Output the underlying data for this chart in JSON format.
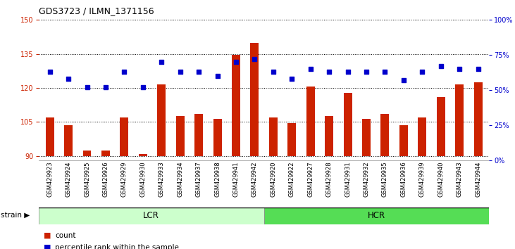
{
  "title": "GDS3723 / ILMN_1371156",
  "samples": [
    "GSM429923",
    "GSM429924",
    "GSM429925",
    "GSM429926",
    "GSM429929",
    "GSM429930",
    "GSM429933",
    "GSM429934",
    "GSM429937",
    "GSM429938",
    "GSM429941",
    "GSM429942",
    "GSM429920",
    "GSM429922",
    "GSM429927",
    "GSM429928",
    "GSM429931",
    "GSM429932",
    "GSM429935",
    "GSM429936",
    "GSM429939",
    "GSM429940",
    "GSM429943",
    "GSM429944"
  ],
  "counts": [
    107.0,
    103.5,
    92.5,
    92.5,
    107.0,
    91.0,
    121.5,
    107.5,
    108.5,
    106.5,
    134.5,
    140.0,
    107.0,
    104.5,
    120.5,
    107.5,
    118.0,
    106.5,
    108.5,
    103.5,
    107.0,
    116.0,
    121.5,
    122.5
  ],
  "percentile_ranks": [
    63,
    58,
    52,
    52,
    63,
    52,
    70,
    63,
    63,
    60,
    70,
    72,
    63,
    58,
    65,
    63,
    63,
    63,
    63,
    57,
    63,
    67,
    65,
    65
  ],
  "lcr_count": 12,
  "hcr_count": 12,
  "ymin": 90,
  "ylim_left": [
    88,
    150
  ],
  "ylim_right": [
    0,
    100
  ],
  "yticks_left": [
    90,
    105,
    120,
    135,
    150
  ],
  "yticks_right": [
    0,
    25,
    50,
    75,
    100
  ],
  "bar_color": "#cc2200",
  "dot_color": "#0000cc",
  "lcr_color": "#ccffcc",
  "hcr_color": "#55dd55",
  "dotted_line_color": "#555555",
  "background_color": "#ffffff"
}
